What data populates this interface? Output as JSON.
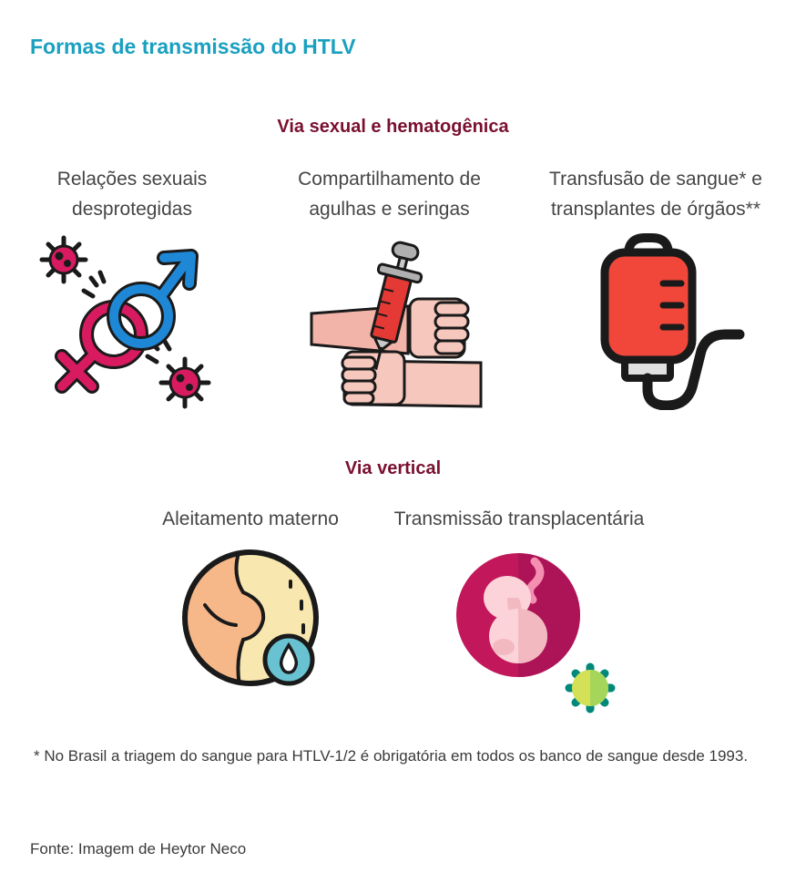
{
  "title": "Formas de transmissão do HTLV",
  "sections": {
    "sexual": {
      "heading": "Via sexual e hematogênica",
      "items": [
        {
          "line1": "Relações sexuais",
          "line2": "desprotegidas",
          "icon": "gender-symbols-virus-icon"
        },
        {
          "line1": "Compartilhamento de",
          "line2": "agulhas e seringas",
          "icon": "syringe-arm-icon"
        },
        {
          "line1": "Transfusão de sangue* e",
          "line2": "transplantes de órgãos**",
          "icon": "blood-bag-icon"
        }
      ]
    },
    "vertical": {
      "heading": "Via vertical",
      "items": [
        {
          "label": "Aleitamento materno",
          "icon": "breastfeeding-milk-drop-icon"
        },
        {
          "label": "Transmissão transplacentária",
          "icon": "fetus-womb-virus-icon"
        }
      ]
    }
  },
  "footnote": "* No Brasil a triagem do sangue para HTLV-1/2 é obrigatória em todos os banco de sangue desde 1993.",
  "source": "Fonte: Imagem de Heytor Neco",
  "colors": {
    "title": "#1aa0c0",
    "section": "#7a1030",
    "virus": "#d81b60",
    "blood": "#f0473a"
  }
}
